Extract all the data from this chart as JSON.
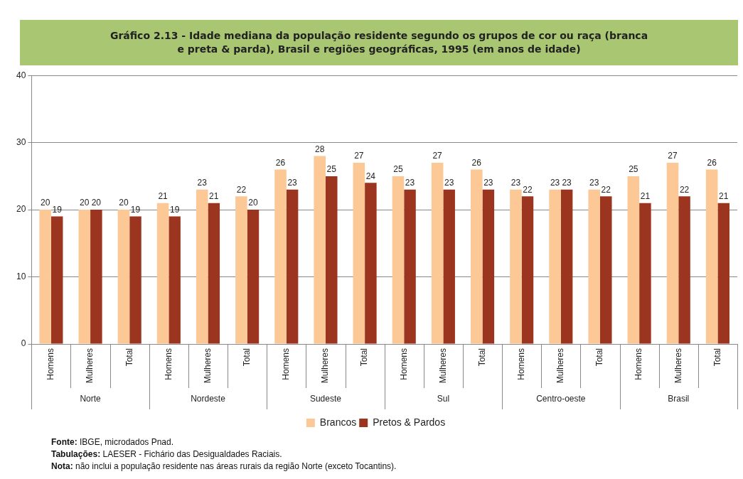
{
  "chart_data": {
    "type": "bar",
    "title": "Gráfico 2.13 - Idade mediana da população residente segundo os grupos de cor ou raça (branca e preta & parda), Brasil e regiões geográficas, 1995 (em anos de idade)",
    "categories": [
      "Homens",
      "Mulheres",
      "Total",
      "Homens",
      "Mulheres",
      "Total",
      "Homens",
      "Mulheres",
      "Total",
      "Homens",
      "Mulheres",
      "Total",
      "Homens",
      "Mulheres",
      "Total",
      "Homens",
      "Mulheres",
      "Total"
    ],
    "series": [
      {
        "name": "Brancos",
        "color": "#fbc896",
        "values": [
          20,
          20,
          20,
          21,
          23,
          22,
          26,
          28,
          27,
          25,
          27,
          26,
          23,
          23,
          23,
          25,
          27,
          26
        ]
      },
      {
        "name": "Pretos & Pardos",
        "color": "#9c3520",
        "values": [
          19,
          20,
          19,
          19,
          21,
          20,
          23,
          25,
          24,
          23,
          23,
          23,
          22,
          23,
          22,
          21,
          22,
          21
        ]
      }
    ],
    "ylim": [
      0,
      40
    ],
    "yticks": [
      0,
      10,
      20,
      30,
      40
    ],
    "grid": "y",
    "legend": "bottom",
    "data_labels": true,
    "annotations": [
      "Norte",
      "Nordeste",
      "Sudeste",
      "Sul",
      "Centro-oeste",
      "Brasil",
      "Fonte: IBGE, microdados Pnad.",
      "Tabulações: LAESER - Fichário das Desigualdades Raciais.",
      "Nota: não inclui a população residente nas áreas rurais da região Norte (exceto Tocantins)."
    ]
  }
}
